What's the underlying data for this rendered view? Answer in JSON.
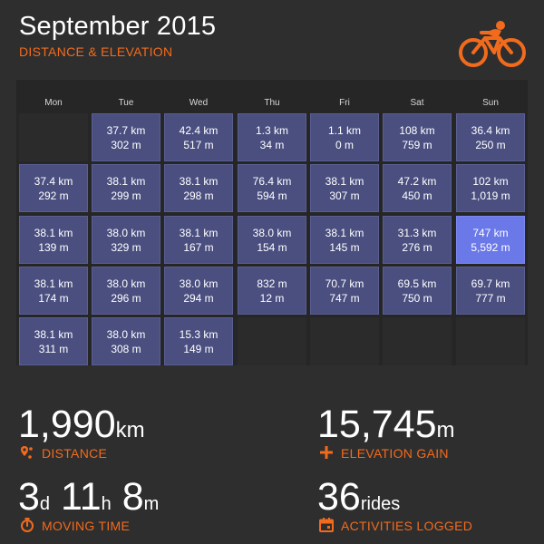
{
  "header": {
    "title": "September 2015",
    "subtitle": "DISTANCE & ELEVATION",
    "logo_icon": "bicycle-rider-icon"
  },
  "colors": {
    "accent": "#f26b1d",
    "cell": "#4a4f80",
    "cell_highlight": "#6a78e8",
    "background": "#2e2e2e"
  },
  "calendar": {
    "days": [
      "Mon",
      "Tue",
      "Wed",
      "Thu",
      "Fri",
      "Sat",
      "Sun"
    ],
    "weeks": [
      [
        null,
        {
          "distance": "37.7 km",
          "elevation": "302 m"
        },
        {
          "distance": "42.4 km",
          "elevation": "517 m"
        },
        {
          "distance": "1.3 km",
          "elevation": "34 m"
        },
        {
          "distance": "1.1 km",
          "elevation": "0 m"
        },
        {
          "distance": "108 km",
          "elevation": "759 m"
        },
        {
          "distance": "36.4 km",
          "elevation": "250 m"
        }
      ],
      [
        {
          "distance": "37.4 km",
          "elevation": "292 m"
        },
        {
          "distance": "38.1 km",
          "elevation": "299 m"
        },
        {
          "distance": "38.1 km",
          "elevation": "298 m"
        },
        {
          "distance": "76.4 km",
          "elevation": "594 m"
        },
        {
          "distance": "38.1 km",
          "elevation": "307 m"
        },
        {
          "distance": "47.2 km",
          "elevation": "450 m"
        },
        {
          "distance": "102 km",
          "elevation": "1,019 m"
        }
      ],
      [
        {
          "distance": "38.1 km",
          "elevation": "139 m"
        },
        {
          "distance": "38.0 km",
          "elevation": "329 m"
        },
        {
          "distance": "38.1 km",
          "elevation": "167 m"
        },
        {
          "distance": "38.0 km",
          "elevation": "154 m"
        },
        {
          "distance": "38.1 km",
          "elevation": "145 m"
        },
        {
          "distance": "31.3 km",
          "elevation": "276 m"
        },
        {
          "distance": "747 km",
          "elevation": "5,592 m",
          "highlight": true
        }
      ],
      [
        {
          "distance": "38.1 km",
          "elevation": "174 m"
        },
        {
          "distance": "38.0 km",
          "elevation": "296 m"
        },
        {
          "distance": "38.0 km",
          "elevation": "294 m"
        },
        {
          "distance": "832 m",
          "elevation": "12 m"
        },
        {
          "distance": "70.7 km",
          "elevation": "747 m"
        },
        {
          "distance": "69.5 km",
          "elevation": "750 m"
        },
        {
          "distance": "69.7 km",
          "elevation": "777 m"
        }
      ],
      [
        {
          "distance": "38.1 km",
          "elevation": "311 m"
        },
        {
          "distance": "38.0 km",
          "elevation": "308 m"
        },
        {
          "distance": "15.3 km",
          "elevation": "149 m"
        },
        null,
        null,
        null,
        null
      ]
    ]
  },
  "stats": {
    "distance": {
      "value": "1,990",
      "unit": "km",
      "label": "DISTANCE",
      "icon": "map-pin-icon"
    },
    "elevation": {
      "value": "15,745",
      "unit": "m",
      "label": "ELEVATION GAIN",
      "icon": "plus-icon"
    },
    "moving_time": {
      "d": "3",
      "d_unit": "d",
      "h": "11",
      "h_unit": "h",
      "m": "8",
      "m_unit": "m",
      "label": "MOVING TIME",
      "icon": "stopwatch-icon"
    },
    "activities": {
      "value": "36",
      "unit": "rides",
      "label": "ACTIVITIES LOGGED",
      "icon": "calendar-icon"
    }
  }
}
